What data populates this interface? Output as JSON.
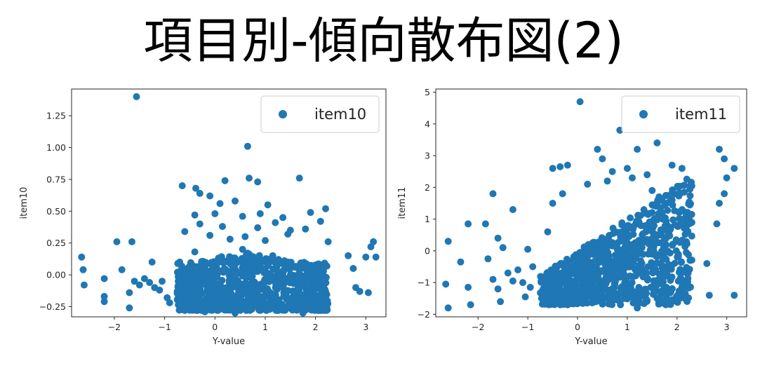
{
  "title": "項目別-傾向散布図(2)",
  "colors": {
    "point": "#1f77b4",
    "axis": "#262626",
    "legend_border": "#cccccc"
  },
  "chart_data": [
    {
      "type": "scatter",
      "xlabel": "Y-value",
      "ylabel": "item10",
      "legend": [
        "item10"
      ],
      "legend_position": "upper right",
      "grid": false,
      "xlim": [
        -2.85,
        3.4
      ],
      "ylim": [
        -0.33,
        1.46
      ],
      "xticks": [
        -2,
        -1,
        0,
        1,
        2,
        3
      ],
      "xtick_labels": [
        "−2",
        "−1",
        "0",
        "1",
        "2",
        "3"
      ],
      "yticks": [
        -0.25,
        0.0,
        0.25,
        0.5,
        0.75,
        1.0,
        1.25
      ],
      "ytick_labels": [
        "−0.25",
        "0.00",
        "0.25",
        "0.50",
        "0.75",
        "1.00",
        "1.25"
      ],
      "series": [
        {
          "name": "item10",
          "points": [
            [
              -1.56,
              1.4
            ],
            [
              0.65,
              1.01
            ],
            [
              0.68,
              0.76
            ],
            [
              1.68,
              0.76
            ],
            [
              0.85,
              0.73
            ],
            [
              0.2,
              0.74
            ],
            [
              -0.65,
              0.7
            ],
            [
              -0.38,
              0.68
            ],
            [
              -0.3,
              0.64
            ],
            [
              -0.1,
              0.62
            ],
            [
              0.1,
              0.56
            ],
            [
              0.4,
              0.58
            ],
            [
              1.05,
              0.55
            ],
            [
              2.2,
              0.52
            ],
            [
              1.9,
              0.49
            ],
            [
              0.9,
              0.48
            ],
            [
              0.0,
              0.48
            ],
            [
              -0.4,
              0.47
            ],
            [
              0.55,
              0.46
            ],
            [
              1.35,
              0.45
            ],
            [
              -1.95,
              0.26
            ],
            [
              -1.65,
              0.26
            ],
            [
              -2.65,
              0.14
            ],
            [
              -2.62,
              0.04
            ],
            [
              -2.6,
              -0.08
            ],
            [
              -2.2,
              -0.03
            ],
            [
              -2.2,
              -0.17
            ],
            [
              -2.2,
              -0.21
            ],
            [
              -1.85,
              0.04
            ],
            [
              -1.7,
              -0.26
            ],
            [
              -1.7,
              -0.14
            ],
            [
              -1.6,
              -0.05
            ],
            [
              -1.5,
              -0.08
            ],
            [
              -1.4,
              -0.03
            ],
            [
              -1.3,
              -0.06
            ],
            [
              -1.2,
              -0.1
            ],
            [
              -1.1,
              -0.12
            ],
            [
              -1.05,
              -0.05
            ],
            [
              -0.95,
              -0.18
            ],
            [
              -0.9,
              -0.22
            ],
            [
              -1.25,
              0.1
            ],
            [
              2.65,
              0.15
            ],
            [
              2.8,
              -0.1
            ],
            [
              2.88,
              -0.13
            ],
            [
              3.05,
              -0.14
            ],
            [
              2.75,
              0.05
            ],
            [
              3.0,
              0.14
            ],
            [
              3.1,
              0.22
            ],
            [
              3.15,
              0.26
            ],
            [
              3.2,
              0.14
            ],
            [
              -0.3,
              0.4
            ],
            [
              0.15,
              0.38
            ],
            [
              0.6,
              0.3
            ],
            [
              0.85,
              0.37
            ],
            [
              1.2,
              0.41
            ],
            [
              1.5,
              0.35
            ],
            [
              1.8,
              0.36
            ],
            [
              2.1,
              0.42
            ],
            [
              -0.6,
              0.34
            ],
            [
              -0.1,
              0.31
            ],
            [
              0.3,
              0.28
            ],
            [
              1.0,
              0.27
            ],
            [
              1.45,
              0.32
            ],
            [
              2.25,
              0.26
            ],
            [
              -0.7,
              0.1
            ],
            [
              -0.5,
              -0.2
            ],
            [
              0.1,
              -0.25
            ],
            [
              0.4,
              -0.3
            ],
            [
              0.9,
              -0.28
            ],
            [
              1.3,
              -0.27
            ],
            [
              1.75,
              -0.3
            ],
            [
              2.2,
              -0.22
            ],
            [
              -0.2,
              -0.29
            ],
            [
              0.2,
              -0.18
            ],
            [
              1.6,
              -0.2
            ],
            [
              0.55,
              0.2
            ],
            [
              -0.4,
              0.18
            ],
            [
              1.15,
              0.15
            ]
          ]
        }
      ]
    },
    {
      "type": "scatter",
      "xlabel": "Y-value",
      "ylabel": "item11",
      "legend": [
        "item11"
      ],
      "legend_position": "upper right",
      "grid": false,
      "xlim": [
        -2.85,
        3.4
      ],
      "ylim": [
        -2.08,
        5.1
      ],
      "xticks": [
        -2,
        -1,
        0,
        1,
        2,
        3
      ],
      "xtick_labels": [
        "−2",
        "−1",
        "0",
        "1",
        "2",
        "3"
      ],
      "yticks": [
        -2,
        -1,
        0,
        1,
        2,
        3,
        4,
        5
      ],
      "ytick_labels": [
        "−2",
        "−1",
        "0",
        "1",
        "2",
        "3",
        "4",
        "5"
      ],
      "series": [
        {
          "name": "item11",
          "points": [
            [
              0.05,
              4.7
            ],
            [
              0.85,
              3.8
            ],
            [
              1.6,
              3.4
            ],
            [
              2.85,
              3.2
            ],
            [
              3.15,
              2.6
            ],
            [
              2.95,
              2.9
            ],
            [
              3.0,
              2.3
            ],
            [
              1.2,
              3.2
            ],
            [
              0.4,
              3.2
            ],
            [
              0.5,
              2.9
            ],
            [
              -0.2,
              2.7
            ],
            [
              -0.35,
              2.65
            ],
            [
              -0.5,
              2.6
            ],
            [
              1.9,
              2.7
            ],
            [
              2.1,
              2.6
            ],
            [
              0.7,
              2.5
            ],
            [
              1.0,
              2.6
            ],
            [
              1.4,
              2.4
            ],
            [
              -2.6,
              -1.8
            ],
            [
              -2.65,
              -1.05
            ],
            [
              -2.6,
              0.3
            ],
            [
              -2.2,
              -1.15
            ],
            [
              -2.15,
              -1.7
            ],
            [
              -2.2,
              0.85
            ],
            [
              -1.85,
              0.85
            ],
            [
              -1.7,
              1.8
            ],
            [
              -1.7,
              -0.9
            ],
            [
              -1.6,
              -1.2
            ],
            [
              -1.55,
              -1.6
            ],
            [
              -1.6,
              0.4
            ],
            [
              -1.5,
              0.1
            ],
            [
              -1.4,
              -0.7
            ],
            [
              -1.3,
              1.3
            ],
            [
              -1.3,
              -0.95
            ],
            [
              -1.2,
              -0.6
            ],
            [
              -1.1,
              -1.0
            ],
            [
              -1.05,
              -1.45
            ],
            [
              -1.0,
              0.05
            ],
            [
              -0.95,
              -1.15
            ],
            [
              -0.9,
              -0.5
            ],
            [
              -1.8,
              -0.25
            ],
            [
              -2.35,
              -0.35
            ],
            [
              2.6,
              -0.4
            ],
            [
              2.65,
              -1.4
            ],
            [
              2.8,
              0.85
            ],
            [
              2.85,
              1.5
            ],
            [
              2.95,
              1.8
            ],
            [
              3.15,
              -1.4
            ],
            [
              2.1,
              -1.15
            ],
            [
              2.0,
              0.3
            ],
            [
              1.8,
              -0.6
            ],
            [
              -0.5,
              1.5
            ],
            [
              -0.3,
              1.8
            ],
            [
              0.2,
              2.1
            ],
            [
              0.6,
              2.2
            ],
            [
              1.1,
              2.3
            ],
            [
              1.5,
              1.9
            ],
            [
              1.9,
              1.6
            ],
            [
              2.2,
              1.2
            ],
            [
              -0.6,
              0.6
            ],
            [
              -0.2,
              -1.7
            ],
            [
              0.3,
              -1.6
            ],
            [
              0.8,
              -1.55
            ],
            [
              1.2,
              -1.8
            ],
            [
              1.6,
              -1.5
            ],
            [
              0.0,
              -1.3
            ],
            [
              -0.6,
              -1.65
            ],
            [
              0.5,
              0.3
            ],
            [
              1.3,
              0.5
            ],
            [
              1.7,
              1.1
            ]
          ]
        }
      ]
    }
  ]
}
